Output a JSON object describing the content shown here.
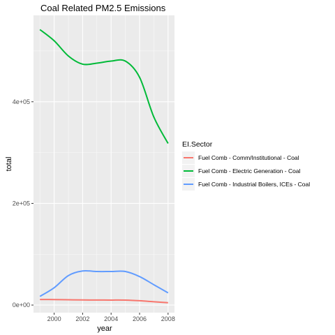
{
  "chart_data": {
    "type": "line",
    "title": "Coal Related PM2.5 Emissions",
    "xlabel": "year",
    "ylabel": "total",
    "xlim": [
      1998.55,
      2008.45
    ],
    "ylim": [
      -15000,
      570000
    ],
    "x_ticks": [
      2000,
      2002,
      2004,
      2006,
      2008
    ],
    "x_tick_labels": [
      "2000",
      "2002",
      "2004",
      "2006",
      "2008"
    ],
    "y_ticks": [
      0,
      200000,
      400000
    ],
    "y_tick_labels": [
      "0e+00",
      "2e+05",
      "4e+05"
    ],
    "grid": true,
    "legend_position": "right",
    "legend_title": "EI.Sector",
    "x": [
      1999,
      2000,
      2001,
      2002,
      2003,
      2004,
      2005,
      2006,
      2007,
      2008
    ],
    "series": [
      {
        "name": "Fuel Comb - Comm/Institutional - Coal",
        "color": "#f8766d",
        "values": [
          11000,
          10800,
          10400,
          10000,
          9900,
          9800,
          9700,
          8500,
          6500,
          4500
        ]
      },
      {
        "name": "Fuel Comb - Electric Generation - Coal",
        "color": "#00ba38",
        "values": [
          542000,
          520000,
          490000,
          474000,
          476000,
          480000,
          480000,
          448000,
          370000,
          318000
        ]
      },
      {
        "name": "Fuel Comb - Industrial Boilers, ICEs - Coal",
        "color": "#619cff",
        "values": [
          17000,
          34000,
          58000,
          67000,
          66000,
          66000,
          66000,
          56000,
          40000,
          24000
        ]
      }
    ]
  }
}
